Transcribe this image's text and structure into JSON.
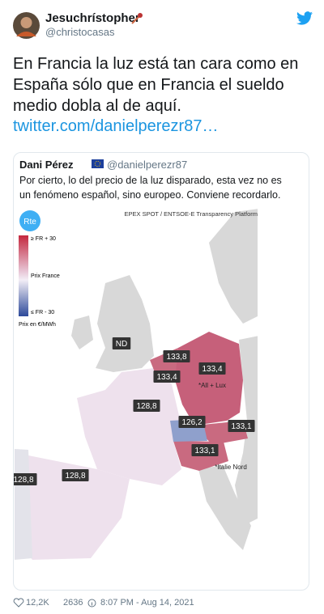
{
  "tweet": {
    "author": {
      "name": "Jesuchrístopher",
      "handle": "@christocasas"
    },
    "text": "En Francia la luz está tan cara como en España sólo que en Francia el sueldo medio dobla al de aquí.",
    "link": "twitter.com/danielperezr87…",
    "quote": {
      "author": {
        "name": "Dani Pérez",
        "handle": "@danielperezr87"
      },
      "text": "Por cierto, lo del precio de la luz disparado, esta vez no es un fenómeno español, sino europeo. Conviene recordarlo.",
      "map": {
        "logo": "Rte",
        "source": "EPEX SPOT / ENTSOE-E Transparency Platform",
        "legend": {
          "high": "≥ FR + 30",
          "mid": "Prix France",
          "low": "≤ FR - 30",
          "unit": "Prix en €/MWh"
        },
        "labels": [
          {
            "text": "ND"
          },
          {
            "text": "133,8"
          },
          {
            "text": "133,4"
          },
          {
            "text": "133,4"
          },
          {
            "text": "*All + Lux"
          },
          {
            "text": "128,8"
          },
          {
            "text": "126,2"
          },
          {
            "text": "133,1"
          },
          {
            "text": "133,1"
          },
          {
            "text": "*Italie Nord"
          },
          {
            "text": "128,8"
          },
          {
            "text": "128,8"
          }
        ]
      }
    },
    "footer": {
      "likes": "12,2K",
      "retweets": "2636",
      "time": "8:07 PM - Aug 14, 2021"
    }
  }
}
